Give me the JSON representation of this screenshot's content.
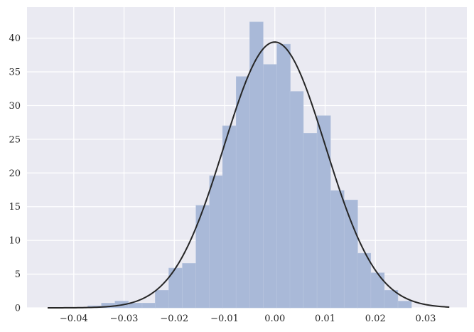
{
  "chart_data": {
    "type": "bar",
    "title": "",
    "xlabel": "",
    "ylabel": "",
    "xlim": [
      -0.0493,
      0.0382
    ],
    "ylim": [
      0,
      44.6
    ],
    "grid": true,
    "xticks": [
      -0.04,
      -0.03,
      -0.02,
      -0.01,
      0.0,
      0.01,
      0.02,
      0.03
    ],
    "xtick_labels": [
      "−0.04",
      "−0.03",
      "−0.02",
      "−0.01",
      "0.00",
      "0.01",
      "0.02",
      "0.03"
    ],
    "yticks": [
      0,
      5,
      10,
      15,
      20,
      25,
      30,
      35,
      40
    ],
    "ytick_labels": [
      "0",
      "5",
      "10",
      "15",
      "20",
      "25",
      "30",
      "35",
      "40"
    ],
    "bin_width": 0.00268,
    "bins": [
      {
        "x0": -0.0452,
        "value": 0.0
      },
      {
        "x0": -0.0425,
        "value": 0.0
      },
      {
        "x0": -0.0398,
        "value": 0.0
      },
      {
        "x0": -0.0372,
        "value": 0.3
      },
      {
        "x0": -0.0345,
        "value": 0.7
      },
      {
        "x0": -0.0318,
        "value": 1.0
      },
      {
        "x0": -0.0291,
        "value": 0.7
      },
      {
        "x0": -0.0264,
        "value": 0.7
      },
      {
        "x0": -0.0238,
        "value": 2.6
      },
      {
        "x0": -0.0211,
        "value": 5.9
      },
      {
        "x0": -0.0184,
        "value": 6.6
      },
      {
        "x0": -0.0157,
        "value": 15.2
      },
      {
        "x0": -0.013,
        "value": 19.6
      },
      {
        "x0": -0.0104,
        "value": 27.0
      },
      {
        "x0": -0.0077,
        "value": 34.3
      },
      {
        "x0": -0.005,
        "value": 42.4
      },
      {
        "x0": -0.0023,
        "value": 36.1
      },
      {
        "x0": 0.0004,
        "value": 39.1
      },
      {
        "x0": 0.003,
        "value": 32.1
      },
      {
        "x0": 0.0057,
        "value": 25.9
      },
      {
        "x0": 0.0084,
        "value": 28.5
      },
      {
        "x0": 0.0111,
        "value": 17.4
      },
      {
        "x0": 0.0138,
        "value": 16.0
      },
      {
        "x0": 0.0164,
        "value": 8.1
      },
      {
        "x0": 0.0191,
        "value": 5.2
      },
      {
        "x0": 0.0218,
        "value": 2.6
      },
      {
        "x0": 0.0245,
        "value": 1.0
      }
    ],
    "fit_curve": {
      "type": "normal_pdf",
      "mean": -2e-05,
      "std": 0.01012,
      "x_range": [
        -0.0452,
        0.0347
      ]
    },
    "colors": {
      "background": "#eaeaf2",
      "grid": "#ffffff",
      "bar": "#a9b9d8",
      "bar_edge": "#b6c4de",
      "curve": "#262626"
    }
  }
}
